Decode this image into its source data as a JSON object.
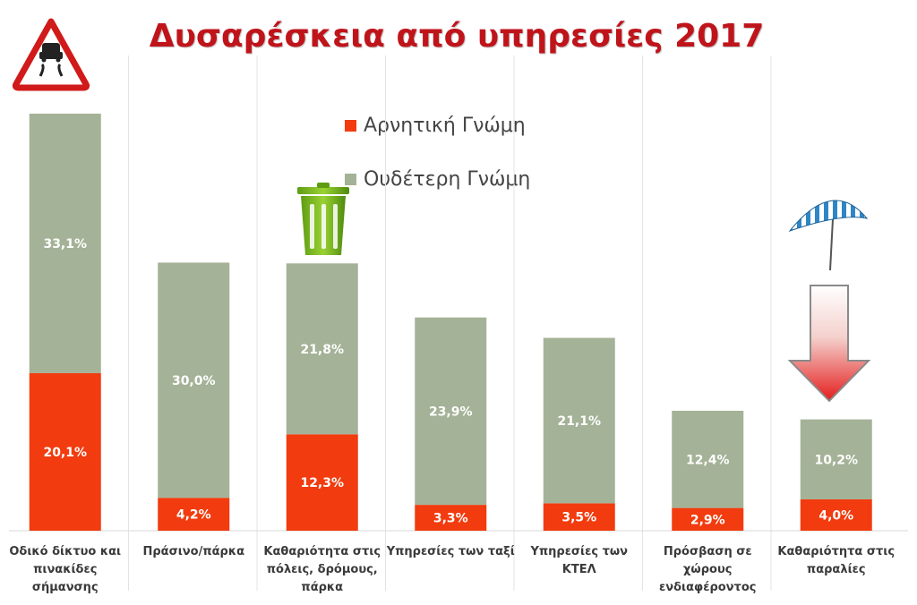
{
  "title": "Δυσαρέσκεια από υπηρεσίες 2017",
  "legend": {
    "negative": "Αρνητική Γνώμη",
    "neutral": "Ουδέτερη Γνώμη"
  },
  "colors": {
    "negative": "#f23b0e",
    "neutral": "#a4b297",
    "title": "#c0141b",
    "grid": "#e3e3e3"
  },
  "icons": {
    "top_left": "slippery-road-warning-icon",
    "bin": "trash-bin-icon",
    "umbrella": "beach-umbrella-icon",
    "arrow": "down-arrow-icon"
  },
  "chart_data": {
    "type": "bar",
    "stacked": true,
    "categories": [
      "Οδικό δίκτυο και πινακίδες σήμανσης",
      "Πράσινο/πάρκα",
      "Καθαριότητα στις πόλεις, δρόμους, πάρκα",
      "Υπηρεσίες των ταξί",
      "Υπηρεσίες των ΚΤΕΛ",
      "Πρόσβαση σε χώρους ενδιαφέροντος",
      "Καθαριότητα στις παραλίες"
    ],
    "category_lines": [
      [
        "Οδικό δίκτυο και",
        "πινακίδες",
        "σήμανσης"
      ],
      [
        "Πράσινο/πάρκα"
      ],
      [
        "Καθαριότητα στις",
        "πόλεις, δρόμους,",
        "πάρκα"
      ],
      [
        "Υπηρεσίες των ταξί"
      ],
      [
        "Υπηρεσίες των",
        "ΚΤΕΛ"
      ],
      [
        "Πρόσβαση σε",
        "χώρους",
        "ενδιαφέροντος"
      ],
      [
        "Καθαριότητα στις",
        "παραλίες"
      ]
    ],
    "series": [
      {
        "name": "Αρνητική Γνώμη",
        "values": [
          20.1,
          4.2,
          12.3,
          3.3,
          3.5,
          2.9,
          4.0
        ],
        "labels": [
          "20,1%",
          "4,2%",
          "12,3%",
          "3,3%",
          "3,5%",
          "2,9%",
          "4,0%"
        ]
      },
      {
        "name": "Ουδέτερη Γνώμη",
        "values": [
          33.1,
          30.0,
          21.8,
          23.9,
          21.1,
          12.4,
          10.2
        ],
        "labels": [
          "33,1%",
          "30,0%",
          "21,8%",
          "23,9%",
          "21,1%",
          "12,4%",
          "10,2%"
        ]
      }
    ],
    "ylim": [
      0,
      53.2
    ],
    "grid": false,
    "legend_position": "top-center"
  }
}
